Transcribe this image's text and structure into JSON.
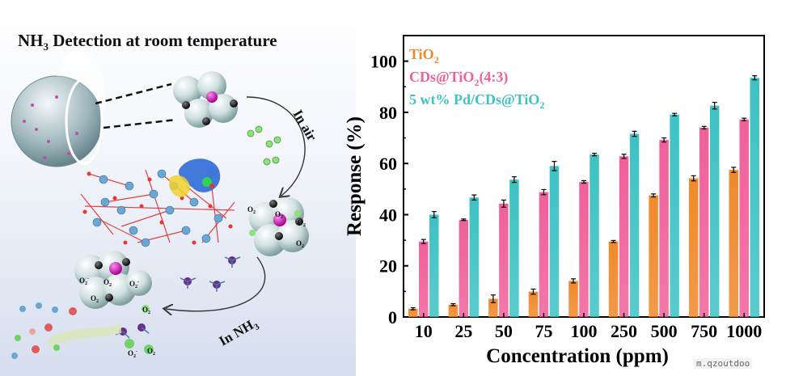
{
  "headline": {
    "prefix": "NH",
    "sub": "3",
    "rest": " Detection at room temperature"
  },
  "illustration": {
    "label_air": "In air",
    "label_nh3": "In NH",
    "label_nh3_sub": "3",
    "oxygen_label": "O",
    "oxygen_sub": "2",
    "oxygen_sup": "-"
  },
  "watermark": "m.qzoutdoo",
  "colors": {
    "tio2": "#f0892a",
    "cds": "#f0609a",
    "pd": "#3ec2c4",
    "sphere": "#c9dada",
    "pd_atom": "#d71fbd",
    "carbon": "#1a1a1a",
    "oxygen_molecule": "#8ee07a"
  },
  "chart_data": {
    "type": "bar",
    "title": "",
    "xlabel": "Concentration (ppm)",
    "ylabel": "Response (%)",
    "ylim": [
      0,
      110
    ],
    "yticks": [
      0,
      20,
      40,
      60,
      80,
      100
    ],
    "grid": false,
    "legend_position": "top-left",
    "categories": [
      "10",
      "25",
      "50",
      "75",
      "100",
      "250",
      "500",
      "750",
      "1000"
    ],
    "series": [
      {
        "name": "TiO",
        "name_sub": "2",
        "name_rest": "",
        "color": "#f0892a",
        "values": [
          3.2,
          4.8,
          7.1,
          9.9,
          14.1,
          29.5,
          47.5,
          54.2,
          57.5
        ],
        "errors": [
          0.4,
          0.4,
          1.5,
          1.0,
          0.8,
          0.4,
          0.6,
          1.0,
          1.0
        ]
      },
      {
        "name": "CDs@TiO",
        "name_sub": "2",
        "name_rest": "(4:3)",
        "color": "#f0609a",
        "values": [
          29.5,
          38.0,
          44.3,
          48.8,
          52.8,
          62.8,
          69.2,
          74.0,
          77.2
        ],
        "errors": [
          0.8,
          0.3,
          1.4,
          1.0,
          0.5,
          0.8,
          0.8,
          0.5,
          0.5
        ]
      },
      {
        "name": "5 wt% Pd/CDs@TiO",
        "name_sub": "2",
        "name_rest": "",
        "color": "#3ec2c4",
        "values": [
          40.0,
          46.7,
          53.7,
          59.0,
          63.5,
          71.6,
          79.1,
          82.6,
          93.5
        ],
        "errors": [
          1.2,
          1.0,
          1.1,
          1.8,
          0.5,
          1.0,
          0.5,
          1.3,
          0.8
        ]
      }
    ]
  }
}
